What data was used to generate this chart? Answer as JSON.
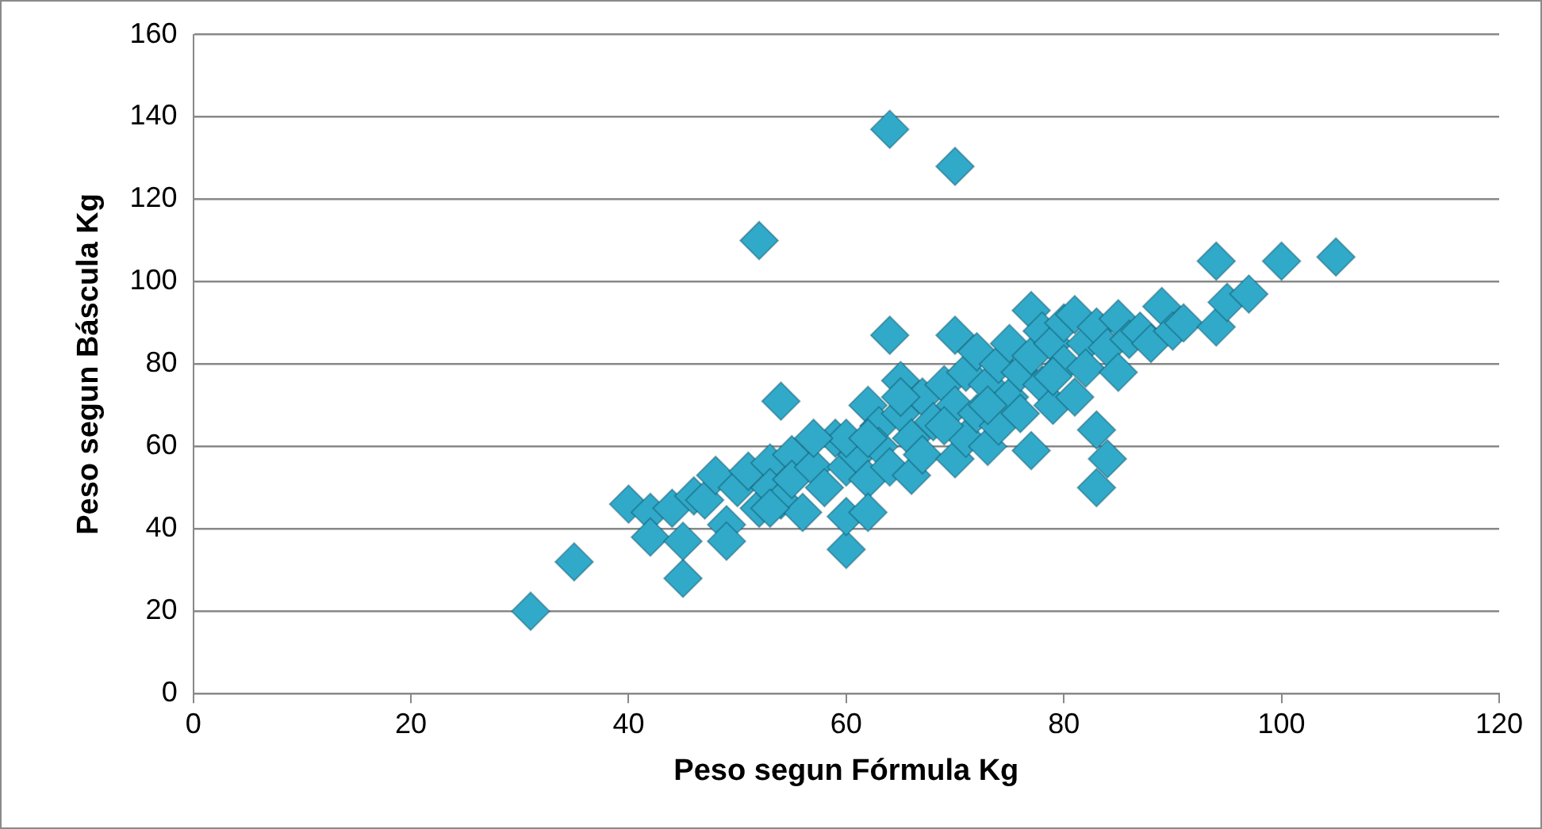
{
  "chart_data": {
    "type": "scatter",
    "xlabel": "Peso segun Fórmula Kg",
    "ylabel": "Peso segun Báscula Kg",
    "xlim": [
      0,
      120
    ],
    "xticks": [
      0,
      20,
      40,
      60,
      80,
      100,
      120
    ],
    "ylim": [
      0,
      160
    ],
    "yticks": [
      0,
      20,
      40,
      60,
      80,
      100,
      120,
      140,
      160
    ],
    "grid": "y",
    "marker": "diamond",
    "legend": false,
    "series": [
      {
        "color": "#31a9c8",
        "x": [
          31,
          35,
          40,
          42,
          42,
          44,
          45,
          45,
          46,
          47,
          48,
          49,
          49,
          50,
          51,
          52,
          52,
          53,
          53,
          54,
          54,
          55,
          55,
          56,
          57,
          58,
          59,
          60,
          60,
          60,
          61,
          62,
          62,
          62,
          63,
          63,
          64,
          64,
          64,
          65,
          65,
          66,
          66,
          67,
          67,
          68,
          69,
          70,
          70,
          70,
          70,
          71,
          71,
          72,
          72,
          73,
          73,
          74,
          74,
          75,
          75,
          76,
          76,
          77,
          77,
          77,
          78,
          78,
          79,
          79,
          80,
          80,
          81,
          81,
          82,
          82,
          83,
          83,
          83,
          84,
          84,
          85,
          85,
          86,
          87,
          88,
          89,
          90,
          91,
          94,
          94,
          95,
          97,
          100,
          105,
          60,
          65,
          69,
          73,
          79,
          62,
          57,
          53
        ],
        "values": [
          20,
          32,
          46,
          44,
          38,
          45,
          28,
          37,
          48,
          47,
          53,
          41,
          37,
          50,
          54,
          45,
          110,
          56,
          50,
          71,
          47,
          58,
          52,
          44,
          55,
          50,
          62,
          35,
          43,
          55,
          58,
          70,
          52,
          44,
          65,
          60,
          87,
          137,
          55,
          76,
          68,
          53,
          62,
          72,
          58,
          66,
          75,
          87,
          128,
          70,
          57,
          62,
          78,
          83,
          68,
          75,
          60,
          80,
          65,
          72,
          85,
          78,
          68,
          93,
          59,
          82,
          75,
          88,
          85,
          70,
          80,
          90,
          92,
          72,
          85,
          79,
          89,
          64,
          50,
          57,
          84,
          91,
          78,
          86,
          88,
          85,
          94,
          88,
          90,
          105,
          89,
          95,
          97,
          105,
          106,
          62,
          72,
          65,
          70,
          77,
          62,
          62,
          45
        ]
      }
    ]
  }
}
